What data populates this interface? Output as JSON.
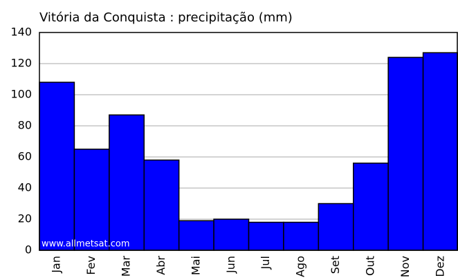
{
  "chart_data": {
    "type": "bar",
    "title": "Vitória da Conquista : precipitação (mm)",
    "categories": [
      "Jan",
      "Fev",
      "Mar",
      "Abr",
      "Mai",
      "Jun",
      "Jul",
      "Ago",
      "Set",
      "Out",
      "Nov",
      "Dez"
    ],
    "values": [
      108,
      65,
      87,
      58,
      19,
      20,
      18,
      18,
      30,
      56,
      124,
      127
    ],
    "color": "#0000ff",
    "ylim": [
      0,
      140
    ],
    "yticks": [
      0,
      20,
      40,
      60,
      80,
      100,
      120,
      140
    ],
    "grid": true,
    "watermark": "www.allmetsat.com"
  }
}
